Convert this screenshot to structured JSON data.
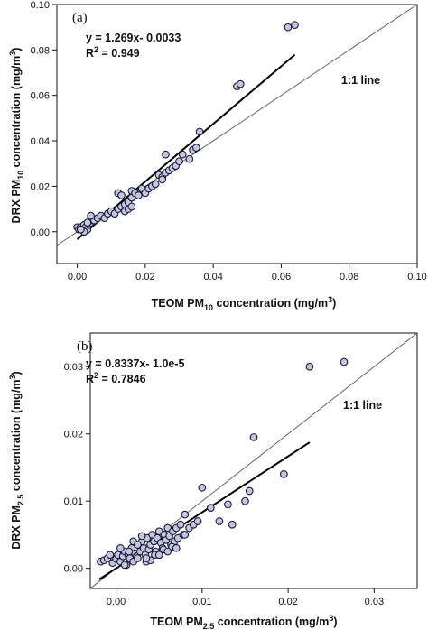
{
  "chart_data": [
    {
      "type": "scatter",
      "panel_label": "(a)",
      "equation": "y = 1.269x- 0.0033",
      "r2": "R",
      "r2_sup": "2",
      "r2_value": " = 0.949",
      "one_to_one_label": "1:1 line",
      "xlabel": {
        "prefix": "TEOM PM",
        "sub": "10",
        "mid": " concentration (mg/m",
        "sup": "3",
        "suffix": ")"
      },
      "ylabel": {
        "prefix": "DRX PM",
        "sub": "10",
        "mid": " concentration (mg/m",
        "sup": "3",
        "suffix": ")"
      },
      "xlim": [
        -0.006,
        0.1
      ],
      "ylim": [
        -0.014,
        0.1
      ],
      "xticks": [
        0.0,
        0.02,
        0.04,
        0.06,
        0.08,
        0.1
      ],
      "xtick_labels": [
        "0.00",
        "0.02",
        "0.04",
        "0.06",
        "0.08",
        "0.10"
      ],
      "yticks": [
        0.0,
        0.02,
        0.04,
        0.06,
        0.08,
        0.1
      ],
      "ytick_labels": [
        "0.00",
        "0.02",
        "0.04",
        "0.06",
        "0.08",
        "0.10"
      ],
      "fit": {
        "slope": 1.269,
        "intercept": -0.0033,
        "x_range": [
          0.0,
          0.064
        ]
      },
      "grid": false,
      "x": [
        0.0,
        0.0005,
        0.001,
        0.0015,
        0.002,
        0.0025,
        0.003,
        0.0035,
        0.004,
        0.0045,
        0.005,
        0.006,
        0.007,
        0.008,
        0.009,
        0.01,
        0.011,
        0.012,
        0.012,
        0.013,
        0.013,
        0.014,
        0.014,
        0.015,
        0.015,
        0.016,
        0.016,
        0.017,
        0.018,
        0.019,
        0.02,
        0.021,
        0.022,
        0.023,
        0.024,
        0.025,
        0.026,
        0.026,
        0.027,
        0.028,
        0.029,
        0.03,
        0.031,
        0.033,
        0.034,
        0.035,
        0.036,
        0.047,
        0.048,
        0.062,
        0.064,
        0.004,
        0.003,
        0.002,
        0.001,
        0.016,
        0.025
      ],
      "y": [
        0.002,
        0.001,
        0.002,
        0.001,
        0.003,
        0.002,
        0.001,
        0.003,
        0.004,
        0.005,
        0.005,
        0.006,
        0.007,
        0.006,
        0.008,
        0.009,
        0.008,
        0.01,
        0.017,
        0.011,
        0.016,
        0.009,
        0.012,
        0.01,
        0.013,
        0.015,
        0.018,
        0.017,
        0.016,
        0.019,
        0.017,
        0.019,
        0.02,
        0.021,
        0.025,
        0.024,
        0.026,
        0.034,
        0.027,
        0.028,
        0.029,
        0.031,
        0.034,
        0.032,
        0.036,
        0.037,
        0.044,
        0.064,
        0.065,
        0.09,
        0.091,
        0.007,
        0.004,
        0.0,
        0.001,
        0.011,
        0.023
      ]
    },
    {
      "type": "scatter",
      "panel_label": "(b)",
      "equation": "y = 0.8337x- 1.0e-5",
      "r2": "R",
      "r2_sup": "2",
      "r2_value": " = 0.7846",
      "one_to_one_label": "1:1 line",
      "xlabel": {
        "prefix": "TEOM PM",
        "sub": "2.5",
        "mid": " concentration (mg/m",
        "sup": "3",
        "suffix": ")"
      },
      "ylabel": {
        "prefix": "DRX PM",
        "sub": "2.5",
        "mid": " concentration (mg/m",
        "sup": "3",
        "suffix": ")"
      },
      "xlim": [
        -0.003,
        0.035
      ],
      "ylim": [
        -0.003,
        0.035
      ],
      "xticks": [
        0.0,
        0.01,
        0.02,
        0.03
      ],
      "xtick_labels": [
        "0.00",
        "0.01",
        "0.02",
        "0.03"
      ],
      "yticks": [
        0.0,
        0.01,
        0.02,
        0.03
      ],
      "ytick_labels": [
        "0.00",
        "0.01",
        "0.02",
        "0.03"
      ],
      "fit": {
        "slope": 0.8337,
        "intercept": -1e-05,
        "x_range": [
          -0.002,
          0.0225
        ]
      },
      "grid": false,
      "x": [
        -0.0018,
        -0.0014,
        -0.001,
        -0.0007,
        -0.0004,
        0.0,
        0.0002,
        0.0005,
        0.0008,
        0.001,
        0.0012,
        0.0014,
        0.0016,
        0.0018,
        0.002,
        0.0022,
        0.0024,
        0.0026,
        0.0028,
        0.003,
        0.0032,
        0.0034,
        0.0036,
        0.0038,
        0.004,
        0.0042,
        0.0044,
        0.0046,
        0.0048,
        0.005,
        0.0052,
        0.0054,
        0.0056,
        0.0058,
        0.006,
        0.0062,
        0.0064,
        0.0066,
        0.0068,
        0.007,
        0.0072,
        0.0075,
        0.0078,
        0.008,
        0.0085,
        0.009,
        0.0095,
        0.01,
        0.011,
        0.012,
        0.013,
        0.0135,
        0.015,
        0.0155,
        0.016,
        0.0195,
        0.0225,
        0.0265,
        0.0005,
        0.0015,
        0.0025,
        0.0035,
        0.0045,
        0.0055,
        0.0065,
        0.003,
        0.002,
        0.001,
        0.004,
        0.006,
        0.007,
        0.008,
        0.005,
        0.0035,
        0.0025
      ],
      "y": [
        0.001,
        0.0012,
        0.0015,
        0.002,
        0.0008,
        0.0014,
        0.002,
        0.001,
        0.0018,
        0.0025,
        0.0005,
        0.002,
        0.0015,
        0.003,
        0.001,
        0.0022,
        0.0018,
        0.0035,
        0.0025,
        0.004,
        0.003,
        0.002,
        0.0045,
        0.0028,
        0.0035,
        0.005,
        0.004,
        0.0025,
        0.0045,
        0.0055,
        0.0038,
        0.003,
        0.005,
        0.0042,
        0.006,
        0.0048,
        0.0035,
        0.0055,
        0.004,
        0.006,
        0.0045,
        0.0065,
        0.005,
        0.008,
        0.006,
        0.0065,
        0.007,
        0.012,
        0.009,
        0.007,
        0.0095,
        0.0065,
        0.01,
        0.0115,
        0.0195,
        0.014,
        0.03,
        0.0307,
        0.003,
        0.0025,
        0.0015,
        0.001,
        0.002,
        0.0028,
        0.0032,
        0.0048,
        0.004,
        0.0005,
        0.0012,
        0.0025,
        0.003,
        0.005,
        0.002,
        0.0015,
        0.0035
      ]
    }
  ]
}
